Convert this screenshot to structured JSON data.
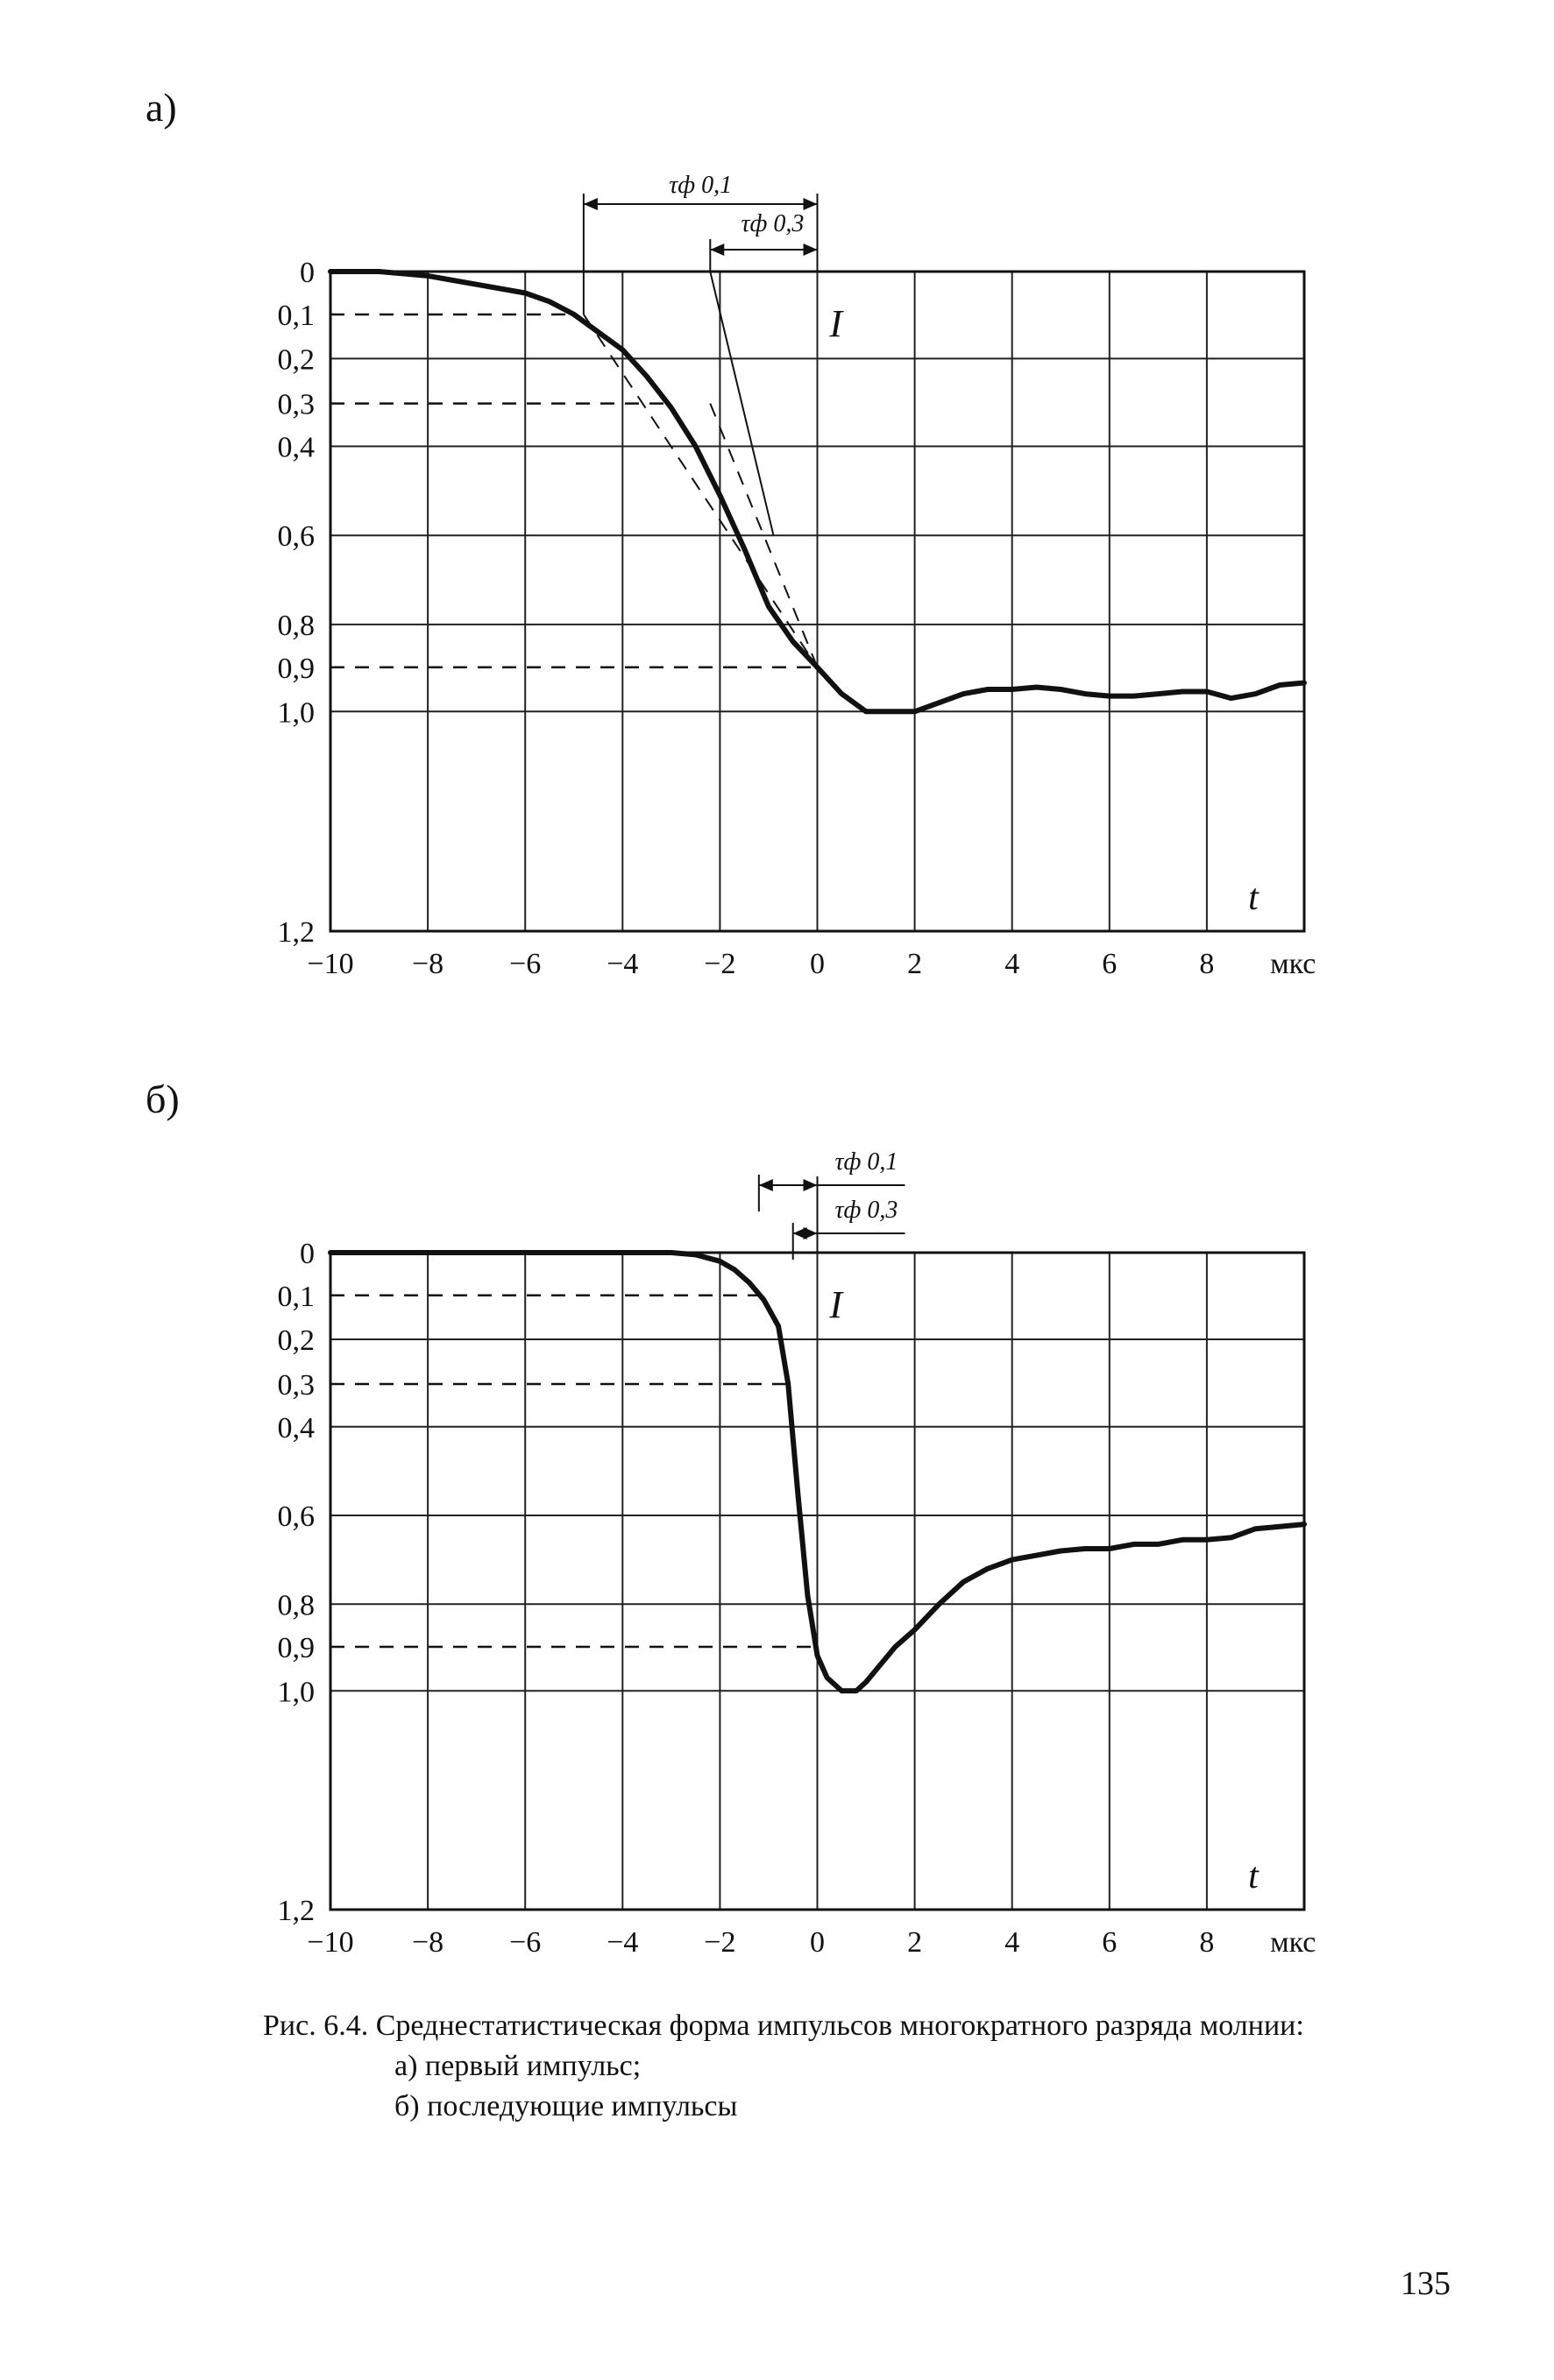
{
  "panels": [
    {
      "label": "а)"
    },
    {
      "label": "б)"
    }
  ],
  "caption": {
    "line1": "Рис. 6.4. Среднестатистическая форма импульсов многократного разряда молнии:",
    "line2": "а) первый импульс;",
    "line3": "б) последующие импульсы"
  },
  "page_number": "135",
  "chart_data": [
    {
      "type": "line",
      "panel": "а)",
      "x": [
        -10,
        -9,
        -8,
        -7,
        -6,
        -5.5,
        -5,
        -4.5,
        -4,
        -3.5,
        -3,
        -2.5,
        -2,
        -1.5,
        -1,
        -0.5,
        0,
        0.5,
        1,
        1.5,
        2,
        2.5,
        3,
        3.5,
        4,
        4.5,
        5,
        5.5,
        6,
        6.5,
        7,
        7.5,
        8,
        8.5,
        9,
        9.5,
        10
      ],
      "y": [
        0,
        0,
        0.01,
        0.03,
        0.05,
        0.07,
        0.1,
        0.14,
        0.18,
        0.24,
        0.31,
        0.4,
        0.51,
        0.63,
        0.76,
        0.84,
        0.9,
        0.96,
        1.0,
        1.0,
        1.0,
        0.98,
        0.96,
        0.95,
        0.95,
        0.945,
        0.95,
        0.96,
        0.965,
        0.965,
        0.96,
        0.955,
        0.955,
        0.97,
        0.96,
        0.94,
        0.935
      ],
      "curve_label": "I",
      "xlabel": "t",
      "x_unit": "мкс",
      "xlim": [
        -10,
        10
      ],
      "ylim": [
        0,
        1.2
      ],
      "y_inverted": true,
      "x_ticks": [
        "−10",
        "−8",
        "−6",
        "−4",
        "−2",
        "0",
        "2",
        "4",
        "6",
        "8"
      ],
      "x_tick_values": [
        -10,
        -8,
        -6,
        -4,
        -2,
        0,
        2,
        4,
        6,
        8
      ],
      "y_ticks": [
        "0",
        "0,1",
        "0,2",
        "0,3",
        "0,4",
        "0,6",
        "0,8",
        "0,9",
        "1,0",
        "1,2"
      ],
      "y_tick_values": [
        0,
        0.1,
        0.2,
        0.3,
        0.4,
        0.6,
        0.8,
        0.9,
        1.0,
        1.2
      ],
      "grid": true,
      "reference_levels": [
        0.1,
        0.3,
        0.9
      ],
      "annotations": [
        {
          "text": "τф 0,1",
          "from_x": -4.8,
          "to_x": 0
        },
        {
          "text": "τф 0,3",
          "from_x": -2.2,
          "to_x": 0
        }
      ],
      "tangent_lines": [
        {
          "from": [
            -4.8,
            0.1
          ],
          "to": [
            0,
            0.9
          ]
        },
        {
          "from": [
            -2.2,
            0.3
          ],
          "to": [
            0,
            0.9
          ]
        },
        {
          "from": [
            -2.2,
            0
          ],
          "to": [
            -0.9,
            0.6
          ]
        }
      ]
    },
    {
      "type": "line",
      "panel": "б)",
      "x": [
        -10,
        -8,
        -6,
        -4,
        -3,
        -2.5,
        -2,
        -1.7,
        -1.4,
        -1.1,
        -0.8,
        -0.6,
        -0.4,
        -0.2,
        0,
        0.2,
        0.5,
        0.8,
        1.0,
        1.3,
        1.6,
        2,
        2.5,
        3,
        3.5,
        4,
        4.5,
        5,
        5.5,
        6,
        6.5,
        7,
        7.5,
        8,
        8.5,
        9,
        9.5,
        10
      ],
      "y": [
        0,
        0,
        0,
        0,
        0,
        0.005,
        0.02,
        0.04,
        0.07,
        0.11,
        0.17,
        0.3,
        0.55,
        0.78,
        0.92,
        0.97,
        1.0,
        1.0,
        0.98,
        0.94,
        0.9,
        0.86,
        0.8,
        0.75,
        0.72,
        0.7,
        0.69,
        0.68,
        0.675,
        0.675,
        0.665,
        0.665,
        0.655,
        0.655,
        0.65,
        0.63,
        0.625,
        0.62
      ],
      "curve_label": "I",
      "xlabel": "t",
      "x_unit": "мкс",
      "xlim": [
        -10,
        10
      ],
      "ylim": [
        0,
        1.2
      ],
      "y_inverted": true,
      "x_ticks": [
        "−10",
        "−8",
        "−6",
        "−4",
        "−2",
        "0",
        "2",
        "4",
        "6",
        "8"
      ],
      "x_tick_values": [
        -10,
        -8,
        -6,
        -4,
        -2,
        0,
        2,
        4,
        6,
        8
      ],
      "y_ticks": [
        "0",
        "0,1",
        "0,2",
        "0,3",
        "0,4",
        "0,6",
        "0,8",
        "0,9",
        "1,0",
        "1,2"
      ],
      "y_tick_values": [
        0,
        0.1,
        0.2,
        0.3,
        0.4,
        0.6,
        0.8,
        0.9,
        1.0,
        1.2
      ],
      "grid": true,
      "reference_levels": [
        0.1,
        0.3,
        0.9
      ],
      "annotations": [
        {
          "text": "τф 0,1",
          "from_x": -1.2,
          "to_x": 0
        },
        {
          "text": "τф 0,3",
          "from_x": -0.5,
          "to_x": 0
        }
      ]
    }
  ]
}
